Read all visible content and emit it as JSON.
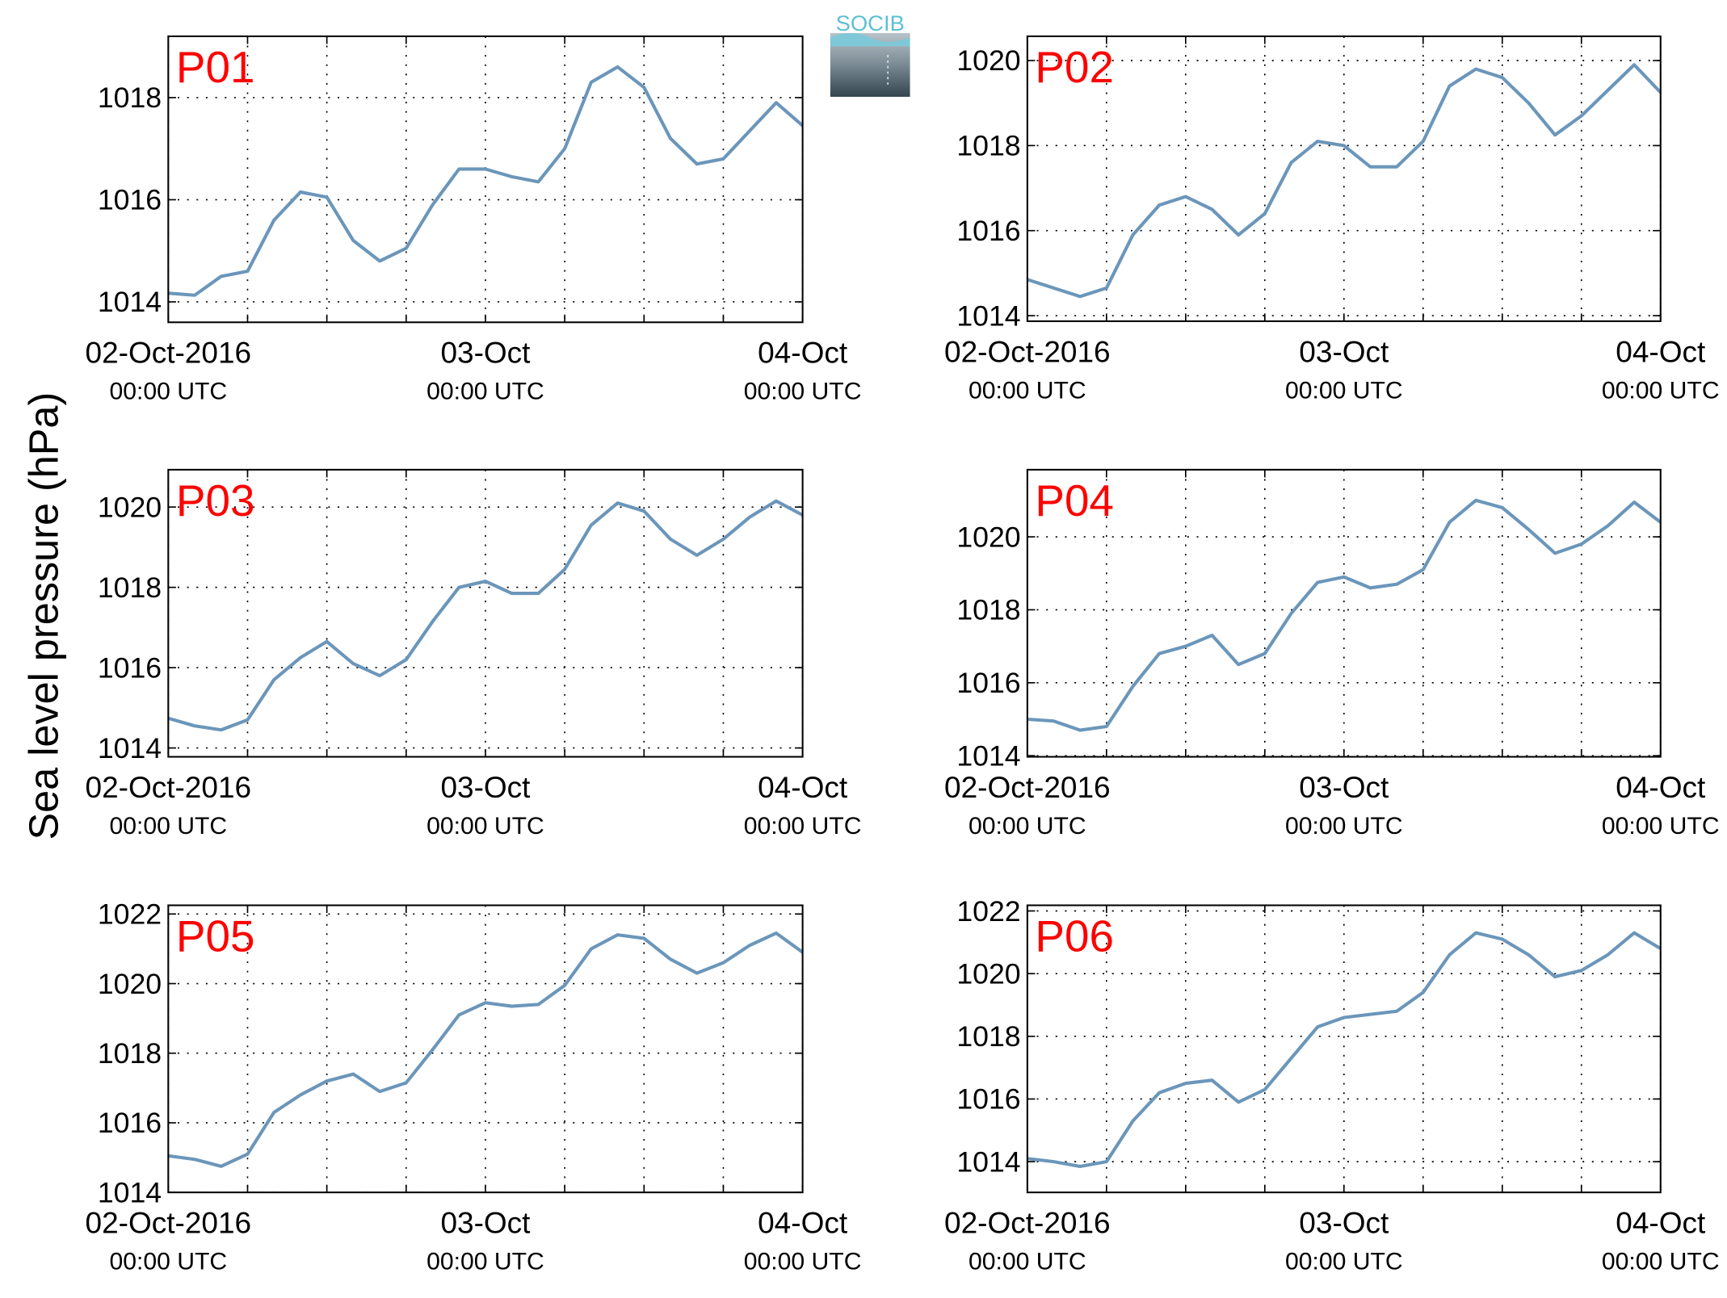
{
  "ylabel": "Sea level pressure (hPa)",
  "logo": "SOCIB",
  "chart_data": [
    {
      "type": "line",
      "title": "P01",
      "color": "#6b96ba",
      "grid": true,
      "x": [
        "2016-10-02 00:00",
        "2016-10-02 02:00",
        "2016-10-02 04:00",
        "2016-10-02 06:00",
        "2016-10-02 08:00",
        "2016-10-02 10:00",
        "2016-10-02 12:00",
        "2016-10-02 14:00",
        "2016-10-02 16:00",
        "2016-10-02 18:00",
        "2016-10-02 20:00",
        "2016-10-02 22:00",
        "2016-10-03 00:00",
        "2016-10-03 02:00",
        "2016-10-03 04:00",
        "2016-10-03 06:00",
        "2016-10-03 08:00",
        "2016-10-03 10:00",
        "2016-10-03 12:00",
        "2016-10-03 14:00",
        "2016-10-03 16:00",
        "2016-10-03 18:00",
        "2016-10-03 20:00",
        "2016-10-03 22:00",
        "2016-10-04 00:00"
      ],
      "values": [
        1014.17,
        1014.13,
        1014.5,
        1014.6,
        1015.6,
        1016.15,
        1016.05,
        1015.2,
        1014.8,
        1015.05,
        1015.9,
        1016.6,
        1016.6,
        1016.45,
        1016.35,
        1017.0,
        1018.3,
        1018.6,
        1018.2,
        1017.2,
        1016.7,
        1016.8,
        1017.35,
        1017.9,
        1017.45
      ],
      "xlim": [
        "2016-10-02 00:00",
        "2016-10-04 00:00"
      ],
      "xticks": [
        {
          "value": "2016-10-02 00:00",
          "label": [
            "02-Oct-2016",
            "00:00 UTC"
          ]
        },
        {
          "value": "2016-10-03 00:00",
          "label": [
            "03-Oct",
            "00:00 UTC"
          ]
        },
        {
          "value": "2016-10-04 00:00",
          "label": [
            "04-Oct",
            "00:00 UTC"
          ]
        }
      ],
      "xminorticks": [
        "2016-10-02 06:00",
        "2016-10-02 12:00",
        "2016-10-02 18:00",
        "2016-10-03 06:00",
        "2016-10-03 12:00",
        "2016-10-03 18:00"
      ],
      "ylim": [
        1013.6,
        1019.2
      ],
      "yticks": [
        1014,
        1016,
        1018
      ]
    },
    {
      "type": "line",
      "title": "P02",
      "color": "#6b96ba",
      "grid": true,
      "x": [
        "2016-10-02 00:00",
        "2016-10-02 02:00",
        "2016-10-02 04:00",
        "2016-10-02 06:00",
        "2016-10-02 08:00",
        "2016-10-02 10:00",
        "2016-10-02 12:00",
        "2016-10-02 14:00",
        "2016-10-02 16:00",
        "2016-10-02 18:00",
        "2016-10-02 20:00",
        "2016-10-02 22:00",
        "2016-10-03 00:00",
        "2016-10-03 02:00",
        "2016-10-03 04:00",
        "2016-10-03 06:00",
        "2016-10-03 08:00",
        "2016-10-03 10:00",
        "2016-10-03 12:00",
        "2016-10-03 14:00",
        "2016-10-03 16:00",
        "2016-10-03 18:00",
        "2016-10-03 20:00",
        "2016-10-03 22:00",
        "2016-10-04 00:00"
      ],
      "values": [
        1014.85,
        1014.65,
        1014.45,
        1014.65,
        1015.9,
        1016.6,
        1016.8,
        1016.5,
        1015.9,
        1016.4,
        1017.6,
        1018.1,
        1018.0,
        1017.5,
        1017.5,
        1018.1,
        1019.4,
        1019.8,
        1019.6,
        1019.0,
        1018.25,
        1018.7,
        1019.3,
        1019.9,
        1019.25
      ],
      "xlim": [
        "2016-10-02 00:00",
        "2016-10-04 00:00"
      ],
      "xticks": [
        {
          "value": "2016-10-02 00:00",
          "label": [
            "02-Oct-2016",
            "00:00 UTC"
          ]
        },
        {
          "value": "2016-10-03 00:00",
          "label": [
            "03-Oct",
            "00:00 UTC"
          ]
        },
        {
          "value": "2016-10-04 00:00",
          "label": [
            "04-Oct",
            "00:00 UTC"
          ]
        }
      ],
      "xminorticks": [
        "2016-10-02 06:00",
        "2016-10-02 12:00",
        "2016-10-02 18:00",
        "2016-10-03 06:00",
        "2016-10-03 12:00",
        "2016-10-03 18:00"
      ],
      "ylim": [
        1013.87,
        1020.57
      ],
      "yticks": [
        1014,
        1016,
        1018,
        1020
      ]
    },
    {
      "type": "line",
      "title": "P03",
      "color": "#6b96ba",
      "grid": true,
      "x": [
        "2016-10-02 00:00",
        "2016-10-02 02:00",
        "2016-10-02 04:00",
        "2016-10-02 06:00",
        "2016-10-02 08:00",
        "2016-10-02 10:00",
        "2016-10-02 12:00",
        "2016-10-02 14:00",
        "2016-10-02 16:00",
        "2016-10-02 18:00",
        "2016-10-02 20:00",
        "2016-10-02 22:00",
        "2016-10-03 00:00",
        "2016-10-03 02:00",
        "2016-10-03 04:00",
        "2016-10-03 06:00",
        "2016-10-03 08:00",
        "2016-10-03 10:00",
        "2016-10-03 12:00",
        "2016-10-03 14:00",
        "2016-10-03 16:00",
        "2016-10-03 18:00",
        "2016-10-03 20:00",
        "2016-10-03 22:00",
        "2016-10-04 00:00"
      ],
      "values": [
        1014.74,
        1014.55,
        1014.45,
        1014.7,
        1015.7,
        1016.25,
        1016.65,
        1016.1,
        1015.8,
        1016.2,
        1017.15,
        1018.0,
        1018.15,
        1017.85,
        1017.85,
        1018.45,
        1019.55,
        1020.1,
        1019.9,
        1019.2,
        1018.8,
        1019.2,
        1019.75,
        1020.15,
        1019.8
      ],
      "xlim": [
        "2016-10-02 00:00",
        "2016-10-04 00:00"
      ],
      "xticks": [
        {
          "value": "2016-10-02 00:00",
          "label": [
            "02-Oct-2016",
            "00:00 UTC"
          ]
        },
        {
          "value": "2016-10-03 00:00",
          "label": [
            "03-Oct",
            "00:00 UTC"
          ]
        },
        {
          "value": "2016-10-04 00:00",
          "label": [
            "04-Oct",
            "00:00 UTC"
          ]
        }
      ],
      "xminorticks": [
        "2016-10-02 06:00",
        "2016-10-02 12:00",
        "2016-10-02 18:00",
        "2016-10-03 06:00",
        "2016-10-03 12:00",
        "2016-10-03 18:00"
      ],
      "ylim": [
        1013.78,
        1020.93
      ],
      "yticks": [
        1014,
        1016,
        1018,
        1020
      ]
    },
    {
      "type": "line",
      "title": "P04",
      "color": "#6b96ba",
      "grid": true,
      "x": [
        "2016-10-02 00:00",
        "2016-10-02 02:00",
        "2016-10-02 04:00",
        "2016-10-02 06:00",
        "2016-10-02 08:00",
        "2016-10-02 10:00",
        "2016-10-02 12:00",
        "2016-10-02 14:00",
        "2016-10-02 16:00",
        "2016-10-02 18:00",
        "2016-10-02 20:00",
        "2016-10-02 22:00",
        "2016-10-03 00:00",
        "2016-10-03 02:00",
        "2016-10-03 04:00",
        "2016-10-03 06:00",
        "2016-10-03 08:00",
        "2016-10-03 10:00",
        "2016-10-03 12:00",
        "2016-10-03 14:00",
        "2016-10-03 16:00",
        "2016-10-03 18:00",
        "2016-10-03 20:00",
        "2016-10-03 22:00",
        "2016-10-04 00:00"
      ],
      "values": [
        1015.0,
        1014.95,
        1014.7,
        1014.8,
        1015.9,
        1016.8,
        1017.0,
        1017.3,
        1016.5,
        1016.8,
        1017.9,
        1018.75,
        1018.9,
        1018.6,
        1018.7,
        1019.1,
        1020.4,
        1021.0,
        1020.8,
        1020.2,
        1019.55,
        1019.8,
        1020.3,
        1020.95,
        1020.4
      ],
      "xlim": [
        "2016-10-02 00:00",
        "2016-10-04 00:00"
      ],
      "xticks": [
        {
          "value": "2016-10-02 00:00",
          "label": [
            "02-Oct-2016",
            "00:00 UTC"
          ]
        },
        {
          "value": "2016-10-03 00:00",
          "label": [
            "03-Oct",
            "00:00 UTC"
          ]
        },
        {
          "value": "2016-10-04 00:00",
          "label": [
            "04-Oct",
            "00:00 UTC"
          ]
        }
      ],
      "xminorticks": [
        "2016-10-02 06:00",
        "2016-10-02 12:00",
        "2016-10-02 18:00",
        "2016-10-03 06:00",
        "2016-10-03 12:00",
        "2016-10-03 18:00"
      ],
      "ylim": [
        1013.97,
        1021.84
      ],
      "yticks": [
        1014,
        1016,
        1018,
        1020
      ]
    },
    {
      "type": "line",
      "title": "P05",
      "color": "#6b96ba",
      "grid": true,
      "x": [
        "2016-10-02 00:00",
        "2016-10-02 02:00",
        "2016-10-02 04:00",
        "2016-10-02 06:00",
        "2016-10-02 08:00",
        "2016-10-02 10:00",
        "2016-10-02 12:00",
        "2016-10-02 14:00",
        "2016-10-02 16:00",
        "2016-10-02 18:00",
        "2016-10-02 20:00",
        "2016-10-02 22:00",
        "2016-10-03 00:00",
        "2016-10-03 02:00",
        "2016-10-03 04:00",
        "2016-10-03 06:00",
        "2016-10-03 08:00",
        "2016-10-03 10:00",
        "2016-10-03 12:00",
        "2016-10-03 14:00",
        "2016-10-03 16:00",
        "2016-10-03 18:00",
        "2016-10-03 20:00",
        "2016-10-03 22:00",
        "2016-10-04 00:00"
      ],
      "values": [
        1015.05,
        1014.95,
        1014.75,
        1015.1,
        1016.3,
        1016.8,
        1017.2,
        1017.4,
        1016.9,
        1017.15,
        1018.1,
        1019.1,
        1019.45,
        1019.35,
        1019.4,
        1019.95,
        1021.0,
        1021.4,
        1021.3,
        1020.7,
        1020.3,
        1020.6,
        1021.1,
        1021.45,
        1020.9
      ],
      "xlim": [
        "2016-10-02 00:00",
        "2016-10-04 00:00"
      ],
      "xticks": [
        {
          "value": "2016-10-02 00:00",
          "label": [
            "02-Oct-2016",
            "00:00 UTC"
          ]
        },
        {
          "value": "2016-10-03 00:00",
          "label": [
            "03-Oct",
            "00:00 UTC"
          ]
        },
        {
          "value": "2016-10-04 00:00",
          "label": [
            "04-Oct",
            "00:00 UTC"
          ]
        }
      ],
      "xminorticks": [
        "2016-10-02 06:00",
        "2016-10-02 12:00",
        "2016-10-02 18:00",
        "2016-10-03 06:00",
        "2016-10-03 12:00",
        "2016-10-03 18:00"
      ],
      "ylim": [
        1014,
        1022.25
      ],
      "yticks": [
        1014,
        1016,
        1018,
        1020,
        1022
      ]
    },
    {
      "type": "line",
      "title": "P06",
      "color": "#6b96ba",
      "grid": true,
      "x": [
        "2016-10-02 00:00",
        "2016-10-02 02:00",
        "2016-10-02 04:00",
        "2016-10-02 06:00",
        "2016-10-02 08:00",
        "2016-10-02 10:00",
        "2016-10-02 12:00",
        "2016-10-02 14:00",
        "2016-10-02 16:00",
        "2016-10-02 18:00",
        "2016-10-02 20:00",
        "2016-10-02 22:00",
        "2016-10-03 00:00",
        "2016-10-03 02:00",
        "2016-10-03 04:00",
        "2016-10-03 06:00",
        "2016-10-03 08:00",
        "2016-10-03 10:00",
        "2016-10-03 12:00",
        "2016-10-03 14:00",
        "2016-10-03 16:00",
        "2016-10-03 18:00",
        "2016-10-03 20:00",
        "2016-10-03 22:00",
        "2016-10-04 00:00"
      ],
      "values": [
        1014.1,
        1014.0,
        1013.85,
        1014.0,
        1015.3,
        1016.2,
        1016.5,
        1016.6,
        1015.9,
        1016.3,
        1017.3,
        1018.3,
        1018.6,
        1018.7,
        1018.8,
        1019.4,
        1020.6,
        1021.3,
        1021.1,
        1020.6,
        1019.9,
        1020.1,
        1020.6,
        1021.3,
        1020.8
      ],
      "xlim": [
        "2016-10-02 00:00",
        "2016-10-04 00:00"
      ],
      "xticks": [
        {
          "value": "2016-10-02 00:00",
          "label": [
            "02-Oct-2016",
            "00:00 UTC"
          ]
        },
        {
          "value": "2016-10-03 00:00",
          "label": [
            "03-Oct",
            "00:00 UTC"
          ]
        },
        {
          "value": "2016-10-04 00:00",
          "label": [
            "04-Oct",
            "00:00 UTC"
          ]
        }
      ],
      "xminorticks": [
        "2016-10-02 06:00",
        "2016-10-02 12:00",
        "2016-10-02 18:00",
        "2016-10-03 06:00",
        "2016-10-03 12:00",
        "2016-10-03 18:00"
      ],
      "ylim": [
        1013.02,
        1022.18
      ],
      "yticks": [
        1014,
        1016,
        1018,
        1020,
        1022
      ]
    }
  ]
}
